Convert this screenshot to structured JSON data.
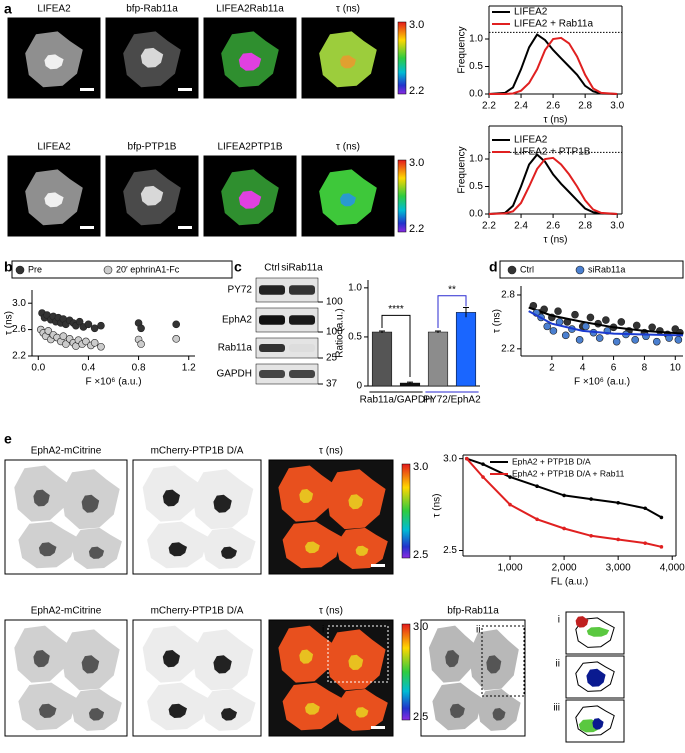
{
  "figure": {
    "panel_letters": [
      "a",
      "b",
      "c",
      "d",
      "e"
    ],
    "a": {
      "row1_labels": [
        "LIFEA2",
        "bfp-Rab11a"
      ],
      "row1_merge": [
        "LIFEA2",
        "Rab11a"
      ],
      "row2_labels": [
        "LIFEA2",
        "bfp-PTP1B"
      ],
      "row2_merge": [
        "LIFEA2",
        "PTP1B"
      ],
      "tau_label": "τ (ns)",
      "colorbar": [
        "3.0",
        "2.2"
      ]
    },
    "c_blot": {
      "lanes": [
        "Ctrl",
        "siRab11a"
      ],
      "rows": [
        "PY72",
        "EphA2",
        "Rab11a",
        "GAPDH"
      ],
      "markers": [
        "100",
        "100",
        "25",
        "37"
      ]
    },
    "e": {
      "row1_labels": [
        "EphA2-mCitrine",
        "mCherry-PTP1B D/A",
        "τ (ns)"
      ],
      "row2_labels": [
        "EphA2-mCitrine",
        "mCherry-PTP1B D/A",
        "τ (ns)",
        "bfp-Rab11a"
      ],
      "colorbar": [
        "3.0",
        "2.5"
      ],
      "roi_labels": [
        "i",
        "ii"
      ],
      "inset_labels": [
        "i",
        "ii",
        "iii"
      ]
    }
  },
  "chart_data": [
    {
      "type": "line",
      "x_label": "τ (ns)",
      "y_label": "Frequency",
      "xlim": [
        2.2,
        3.03
      ],
      "xticks": [
        2.2,
        2.4,
        2.6,
        2.8,
        {
          "value": 3,
          "label": "3.0"
        }
      ],
      "ylim": [
        0,
        1.6
      ],
      "yticks": [
        {
          "value": 0,
          "label": "0.0"
        },
        0.5,
        {
          "value": 1,
          "label": "1.0"
        }
      ],
      "reference_y": 1.12,
      "legend": "upper-left",
      "x": [
        2.2,
        2.3,
        2.35,
        2.4,
        2.45,
        2.5,
        2.55,
        2.6,
        2.65,
        2.7,
        2.75,
        2.8,
        2.85,
        2.9,
        3.0
      ],
      "series": [
        {
          "name": "LIFEA2",
          "color": "#000000",
          "values": [
            0,
            0.02,
            0.12,
            0.45,
            0.85,
            1.08,
            0.98,
            0.8,
            0.65,
            0.5,
            0.35,
            0.15,
            0.05,
            0.01,
            0
          ]
        },
        {
          "name": "LIFEA2 + Rab11a",
          "color": "#e02020",
          "values": [
            0,
            0,
            0.01,
            0.06,
            0.2,
            0.45,
            0.8,
            1.0,
            1.02,
            0.92,
            0.68,
            0.35,
            0.1,
            0.02,
            0
          ]
        }
      ]
    },
    {
      "type": "line",
      "x_label": "τ (ns)",
      "y_label": "Frequency",
      "xlim": [
        2.2,
        3.03
      ],
      "xticks": [
        2.2,
        2.4,
        2.6,
        2.8,
        {
          "value": 3,
          "label": "3.0"
        }
      ],
      "ylim": [
        0,
        1.6
      ],
      "yticks": [
        {
          "value": 0,
          "label": "0.0"
        },
        0.5,
        {
          "value": 1,
          "label": "1.0"
        }
      ],
      "reference_y": 1.12,
      "legend": "upper-left",
      "x": [
        2.2,
        2.3,
        2.35,
        2.4,
        2.45,
        2.5,
        2.55,
        2.6,
        2.65,
        2.7,
        2.75,
        2.8,
        2.85,
        2.9,
        3.0
      ],
      "series": [
        {
          "name": "LIFEA2",
          "color": "#000000",
          "values": [
            0,
            0.02,
            0.15,
            0.5,
            0.9,
            1.08,
            0.95,
            0.72,
            0.55,
            0.4,
            0.25,
            0.1,
            0.03,
            0.01,
            0
          ]
        },
        {
          "name": "LIFEA2 + PTP1B",
          "color": "#e02020",
          "values": [
            0,
            0.01,
            0.05,
            0.2,
            0.5,
            0.82,
            1.0,
            1.02,
            0.9,
            0.72,
            0.5,
            0.25,
            0.08,
            0.02,
            0
          ]
        }
      ]
    },
    {
      "type": "scatter",
      "x_label": "F ×10⁶ (a.u.)",
      "y_label": "τ (ns)",
      "xlim": [
        -0.05,
        1.25
      ],
      "xticks": [
        {
          "value": 0,
          "label": "0.0"
        },
        0.4,
        0.8,
        1.2
      ],
      "ylim": [
        2.2,
        3.2
      ],
      "yticks": [
        2.2,
        2.6,
        {
          "value": 3,
          "label": "3.0"
        }
      ],
      "legend": "top",
      "series": [
        {
          "name": "Pre",
          "color": "#333333",
          "x": [
            0.03,
            0.05,
            0.07,
            0.1,
            0.12,
            0.14,
            0.16,
            0.18,
            0.2,
            0.22,
            0.25,
            0.28,
            0.3,
            0.33,
            0.36,
            0.4,
            0.45,
            0.5,
            0.8,
            0.82,
            1.1
          ],
          "values": [
            2.85,
            2.78,
            2.82,
            2.75,
            2.8,
            2.72,
            2.78,
            2.7,
            2.76,
            2.68,
            2.74,
            2.7,
            2.66,
            2.72,
            2.64,
            2.68,
            2.62,
            2.66,
            2.7,
            2.62,
            2.68
          ]
        },
        {
          "name": "20′ ephrinA1-Fc",
          "color": "#cccccc",
          "x": [
            0.02,
            0.04,
            0.06,
            0.08,
            0.1,
            0.12,
            0.15,
            0.18,
            0.2,
            0.22,
            0.25,
            0.28,
            0.3,
            0.32,
            0.35,
            0.38,
            0.42,
            0.45,
            0.5,
            0.8,
            0.82,
            1.1
          ],
          "values": [
            2.6,
            2.55,
            2.5,
            2.58,
            2.45,
            2.52,
            2.48,
            2.42,
            2.5,
            2.38,
            2.46,
            2.4,
            2.35,
            2.44,
            2.38,
            2.42,
            2.36,
            2.4,
            2.34,
            2.45,
            2.38,
            2.46
          ]
        }
      ]
    },
    {
      "type": "bar",
      "y_label": "Ratio (a.u.)",
      "categories": [
        null,
        null,
        null,
        null
      ],
      "values": [
        0.55,
        0.03,
        0.55,
        0.75
      ],
      "errors": [
        0.01,
        0.01,
        0.01,
        0.05
      ],
      "colors": [
        "#555555",
        "#111111",
        "#8c8c8c",
        "#1a66ff"
      ],
      "ylim": [
        0,
        1.08
      ],
      "yticks": [
        0,
        0.5,
        {
          "value": 1,
          "label": "1.0"
        }
      ],
      "groups": [
        "Rab11a/GAPDH",
        "PY72/EphA2"
      ],
      "group_colors": [
        "#000000",
        "#2a2ad0"
      ],
      "significance": [
        "****",
        "**"
      ]
    },
    {
      "type": "scatter",
      "x_label": "F ×10⁶ (a.u.)",
      "y_label": "τ (ns)",
      "xlim": [
        0,
        10.5
      ],
      "xticks": [
        2,
        4,
        6,
        8,
        10
      ],
      "ylim": [
        2.12,
        2.9
      ],
      "yticks": [
        2.2,
        2.8
      ],
      "legend": "top",
      "fit_x": [
        0.5,
        2,
        4,
        6,
        8,
        10.5
      ],
      "series": [
        {
          "name": "Ctrl",
          "color": "#333333",
          "x": [
            0.8,
            1.2,
            1.5,
            2,
            2.4,
            3,
            3.5,
            4,
            4.5,
            5,
            5.5,
            6,
            6.5,
            7,
            7.5,
            8,
            8.5,
            9,
            9.5,
            10,
            10.3
          ],
          "values": [
            2.68,
            2.6,
            2.64,
            2.55,
            2.62,
            2.5,
            2.58,
            2.45,
            2.55,
            2.48,
            2.52,
            2.44,
            2.5,
            2.4,
            2.46,
            2.38,
            2.44,
            2.4,
            2.36,
            2.42,
            2.38
          ],
          "fit": [
            2.66,
            2.57,
            2.5,
            2.44,
            2.4,
            2.37
          ]
        },
        {
          "name": "siRab11a",
          "color": "#4a7fd0",
          "x": [
            1,
            1.3,
            1.7,
            2.1,
            2.5,
            2.9,
            3.3,
            3.8,
            4.2,
            4.7,
            5.1,
            5.6,
            6.2,
            6.8,
            7.4,
            8.1,
            8.8,
            9.6,
            10.2
          ],
          "values": [
            2.6,
            2.55,
            2.45,
            2.4,
            2.5,
            2.35,
            2.42,
            2.3,
            2.45,
            2.38,
            2.32,
            2.4,
            2.28,
            2.36,
            2.3,
            2.34,
            2.28,
            2.32,
            2.3
          ],
          "fit": [
            2.62,
            2.48,
            2.4,
            2.37,
            2.36,
            2.35
          ]
        }
      ]
    },
    {
      "type": "line",
      "x_label": "FL (a.u.)",
      "y_label": "τ (ns)",
      "xlim": [
        130,
        4070
      ],
      "xticks": [
        {
          "value": 1000,
          "label": "1,000"
        },
        {
          "value": 2000,
          "label": "2,000"
        },
        {
          "value": 3000,
          "label": "3,000"
        },
        {
          "value": 4000,
          "label": "4,000"
        }
      ],
      "ylim": [
        2.47,
        3.02
      ],
      "yticks": [
        2.5,
        {
          "value": 3,
          "label": "3.0"
        }
      ],
      "legend": "top",
      "x": [
        200,
        500,
        1000,
        1500,
        2000,
        2500,
        3000,
        3500,
        3800
      ],
      "series": [
        {
          "name": "EphA2 + PTP1B D/A",
          "color": "#000000",
          "values": [
            3.0,
            2.97,
            2.9,
            2.85,
            2.8,
            2.78,
            2.76,
            2.73,
            2.68
          ]
        },
        {
          "name": "EphA2 + PTP1B D/A + Rab11",
          "color": "#e02020",
          "values": [
            3.0,
            2.9,
            2.75,
            2.67,
            2.62,
            2.58,
            2.56,
            2.54,
            2.52
          ]
        }
      ]
    }
  ]
}
